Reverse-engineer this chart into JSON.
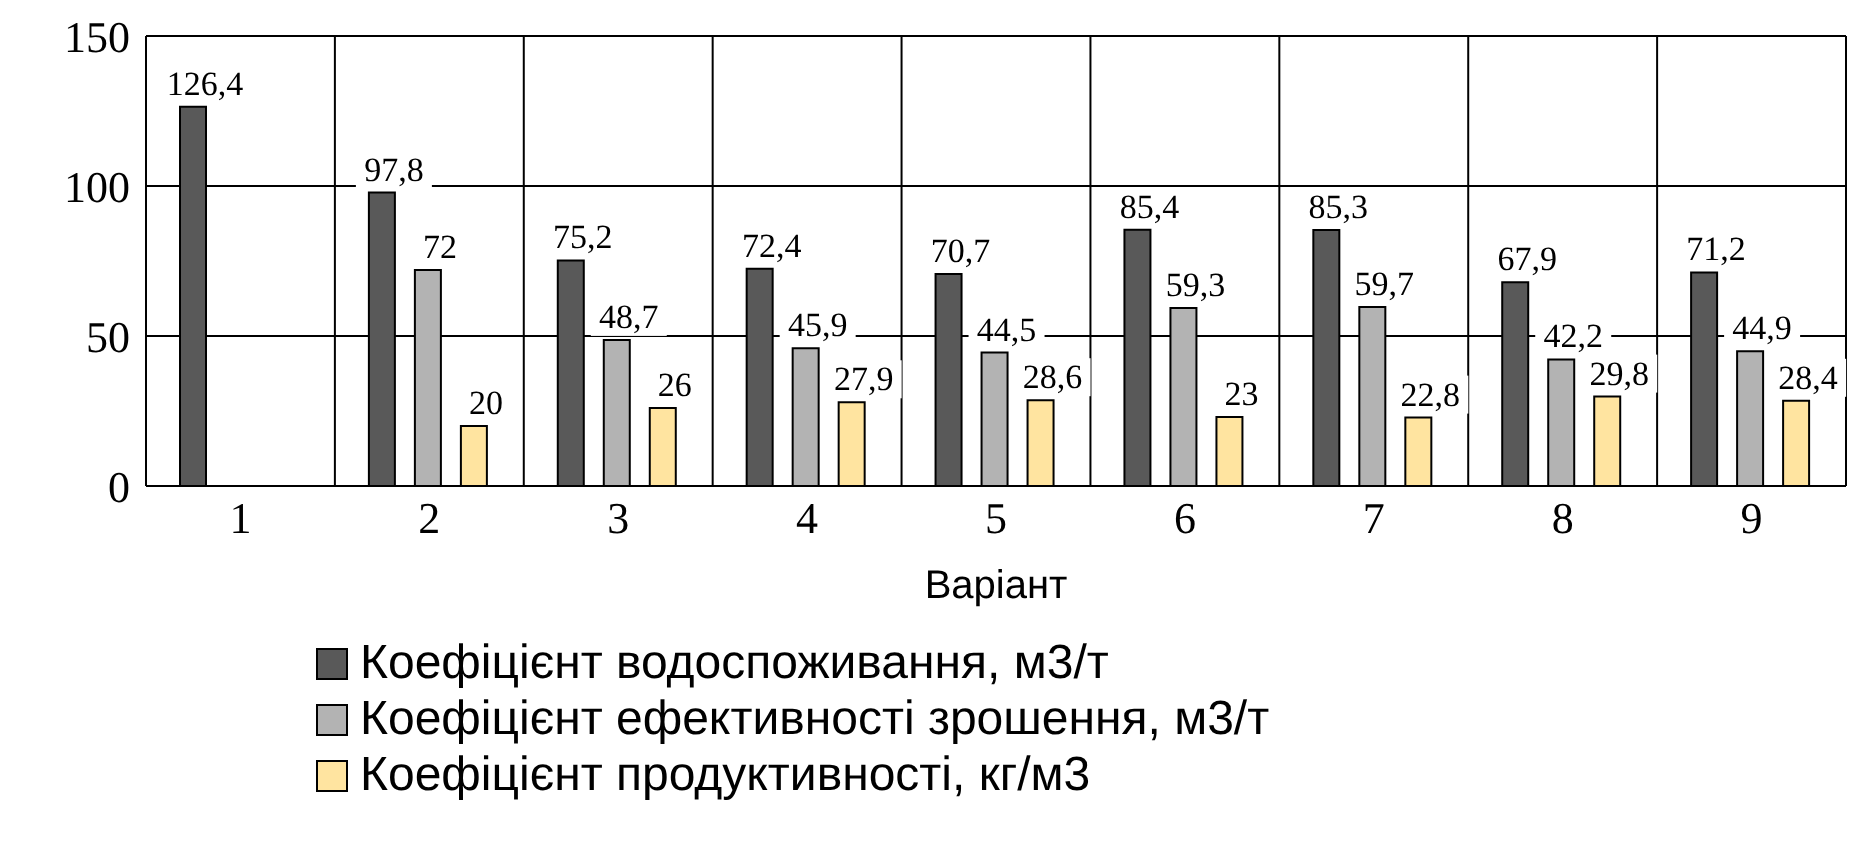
{
  "chart_data": {
    "type": "bar",
    "xlabel": "Варіант",
    "categories": [
      "1",
      "2",
      "3",
      "4",
      "5",
      "6",
      "7",
      "8",
      "9"
    ],
    "series": [
      {
        "name": "Коефіцієнт водоспоживання, м3/т",
        "color": "#595959",
        "values": [
          126.4,
          97.8,
          75.2,
          72.4,
          70.7,
          85.4,
          85.3,
          67.9,
          71.2
        ],
        "value_labels": [
          "126,4",
          "97,8",
          "75,2",
          "72,4",
          "70,7",
          "85,4",
          "85,3",
          "67,9",
          "71,2"
        ]
      },
      {
        "name": "Коефіцієнт ефективності зрошення, м3/т",
        "color": "#b3b3b3",
        "values": [
          null,
          72,
          48.7,
          45.9,
          44.5,
          59.3,
          59.7,
          42.2,
          44.9
        ],
        "value_labels": [
          null,
          "72",
          "48,7",
          "45,9",
          "44,5",
          "59,3",
          "59,7",
          "42,2",
          "44,9"
        ]
      },
      {
        "name": "Коефіцієнт продуктивності, кг/м3",
        "color": "#ffe4a0",
        "values": [
          null,
          20,
          26,
          27.9,
          28.6,
          23,
          22.8,
          29.8,
          28.4
        ],
        "value_labels": [
          null,
          "20",
          "26",
          "27,9",
          "28,6",
          "23",
          "22,8",
          "29,8",
          "28,4"
        ]
      }
    ],
    "ylim": [
      0,
      150
    ],
    "yticks": [
      0,
      50,
      100,
      150
    ],
    "grid": true,
    "legend": "bottom"
  }
}
